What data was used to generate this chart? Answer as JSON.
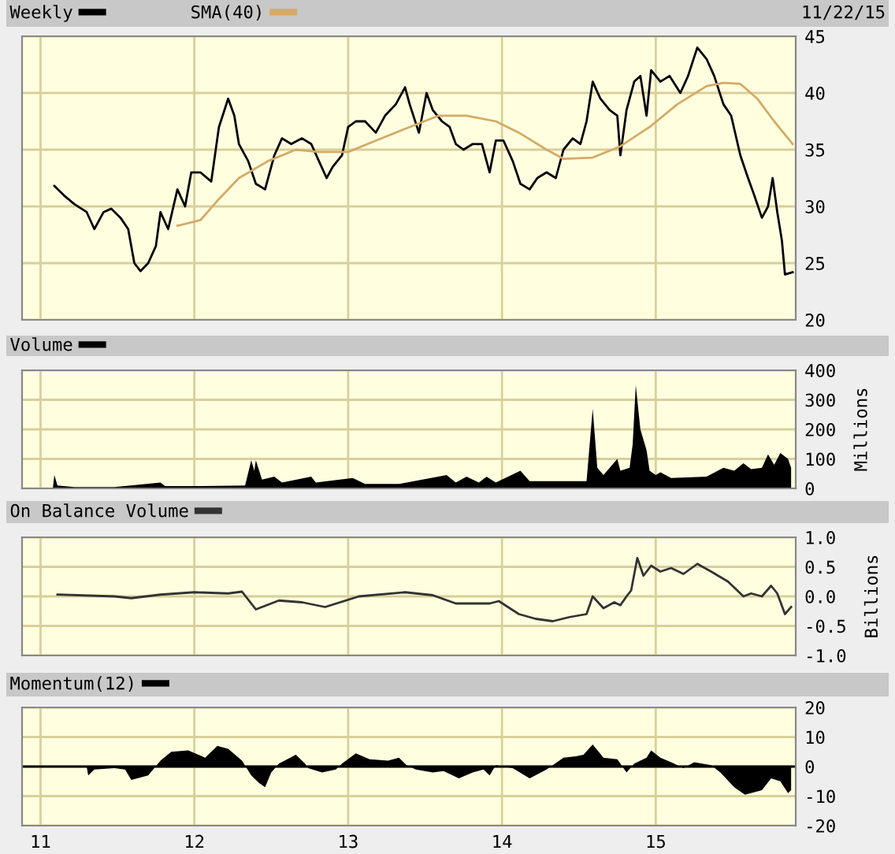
{
  "chart_data": [
    {
      "type": "line",
      "annotations": [
        "11/22/15"
      ],
      "xlim": [
        2010.88,
        2015.91
      ],
      "xticks": [
        {
          "value": 2011,
          "label": null
        },
        {
          "value": 2012,
          "label": null
        },
        {
          "value": 2013,
          "label": null
        },
        {
          "value": 2014,
          "label": null
        },
        {
          "value": 2015,
          "label": null
        }
      ],
      "ylim": [
        20,
        45
      ],
      "yticks": [
        20,
        25,
        30,
        35,
        40,
        45
      ],
      "grid": true,
      "legend": "top left",
      "tick_labels": "y",
      "series": [
        {
          "name": "Weekly",
          "color": "#000000",
          "x": [
            2011.09,
            2011.15,
            2011.22,
            2011.3,
            2011.35,
            2011.41,
            2011.46,
            2011.52,
            2011.57,
            2011.61,
            2011.65,
            2011.7,
            2011.75,
            2011.78,
            2011.83,
            2011.89,
            2011.94,
            2011.98,
            2012.04,
            2012.11,
            2012.16,
            2012.22,
            2012.26,
            2012.29,
            2012.35,
            2012.4,
            2012.46,
            2012.52,
            2012.57,
            2012.63,
            2012.7,
            2012.76,
            2012.81,
            2012.86,
            2012.9,
            2012.96,
            2013.0,
            2013.05,
            2013.11,
            2013.18,
            2013.24,
            2013.31,
            2013.37,
            2013.4,
            2013.46,
            2013.51,
            2013.55,
            2013.61,
            2013.66,
            2013.7,
            2013.75,
            2013.81,
            2013.87,
            2013.92,
            2013.96,
            2014.01,
            2014.07,
            2014.12,
            2014.18,
            2014.23,
            2014.29,
            2014.35,
            2014.4,
            2014.46,
            2014.51,
            2014.55,
            2014.59,
            2014.64,
            2014.7,
            2014.75,
            2014.77,
            2014.81,
            2014.86,
            2014.9,
            2014.94,
            2014.97,
            2015.03,
            2015.09,
            2015.16,
            2015.21,
            2015.27,
            2015.33,
            2015.38,
            2015.44,
            2015.49,
            2015.55,
            2015.6,
            2015.64,
            2015.69,
            2015.73,
            2015.76,
            2015.79,
            2015.82,
            2015.84,
            2015.89
          ],
          "values": [
            31.8,
            31,
            30.2,
            29.5,
            28,
            29.5,
            29.8,
            29,
            28,
            25,
            24.3,
            25,
            26.5,
            29.5,
            28,
            31.5,
            30,
            33,
            33,
            32.2,
            37,
            39.5,
            38,
            35.5,
            34,
            32,
            31.5,
            34.5,
            36,
            35.5,
            36,
            35.5,
            34,
            32.5,
            33.5,
            34.5,
            37,
            37.5,
            37.5,
            36.5,
            38,
            39,
            40.5,
            39,
            36.5,
            40,
            38.5,
            37.5,
            37,
            35.5,
            35,
            35.5,
            35.5,
            33,
            35.8,
            35.8,
            34,
            32,
            31.5,
            32.5,
            33,
            32.5,
            35,
            36,
            35.5,
            37.5,
            41,
            39.5,
            38.5,
            38,
            34.5,
            38.5,
            41,
            41.5,
            38,
            42,
            41,
            41.5,
            40,
            41.5,
            44,
            43,
            41.5,
            39,
            38,
            34.5,
            32.5,
            31,
            29,
            30,
            32.5,
            29.5,
            27,
            24,
            24.2
          ]
        },
        {
          "name": "SMA(40)",
          "color": "#d4aa66",
          "x": [
            2011.89,
            2012.04,
            2012.15,
            2012.29,
            2012.48,
            2012.66,
            2012.81,
            2013.0,
            2013.18,
            2013.4,
            2013.59,
            2013.77,
            2013.96,
            2014.11,
            2014.29,
            2014.4,
            2014.59,
            2014.77,
            2014.96,
            2015.14,
            2015.33,
            2015.44,
            2015.55,
            2015.66,
            2015.77,
            2015.89
          ],
          "values": [
            28.3,
            28.8,
            30.5,
            32.5,
            34,
            35,
            34.8,
            34.8,
            35.8,
            37,
            38,
            38,
            37.5,
            36.5,
            35,
            34.2,
            34.3,
            35.3,
            37,
            39,
            40.6,
            40.9,
            40.8,
            39.5,
            37.5,
            35.5
          ]
        }
      ]
    },
    {
      "type": "area",
      "ylabel": "Millions",
      "xlim": [
        2010.88,
        2015.91
      ],
      "xticks": [
        {
          "value": 2011,
          "label": null
        },
        {
          "value": 2012,
          "label": null
        },
        {
          "value": 2013,
          "label": null
        },
        {
          "value": 2014,
          "label": null
        },
        {
          "value": 2015,
          "label": null
        }
      ],
      "ylim": [
        0,
        400
      ],
      "yticks": [
        0,
        100,
        200,
        300,
        400
      ],
      "grid": true,
      "legend": "top left",
      "tick_labels": "y",
      "series": [
        {
          "name": "Volume",
          "color": "#000000",
          "x": [
            2011.08,
            2011.09,
            2011.11,
            2011.22,
            2011.48,
            2011.78,
            2011.81,
            2012.04,
            2012.33,
            2012.37,
            2012.39,
            2012.4,
            2012.44,
            2012.52,
            2012.57,
            2012.76,
            2012.79,
            2013.03,
            2013.11,
            2013.33,
            2013.64,
            2013.7,
            2013.77,
            2013.85,
            2013.9,
            2013.96,
            2014.12,
            2014.18,
            2014.44,
            2014.55,
            2014.59,
            2014.62,
            2014.66,
            2014.75,
            2014.77,
            2014.83,
            2014.85,
            2014.87,
            2014.9,
            2014.94,
            2014.96,
            2015.0,
            2015.03,
            2015.1,
            2015.33,
            2015.44,
            2015.51,
            2015.57,
            2015.62,
            2015.69,
            2015.73,
            2015.77,
            2015.81,
            2015.86,
            2015.88
          ],
          "values": [
            0,
            45,
            10,
            5,
            5,
            20,
            8,
            8,
            10,
            95,
            60,
            95,
            30,
            40,
            20,
            40,
            20,
            35,
            15,
            15,
            45,
            20,
            40,
            20,
            40,
            20,
            60,
            25,
            25,
            25,
            270,
            70,
            45,
            100,
            60,
            70,
            150,
            350,
            200,
            130,
            60,
            45,
            55,
            35,
            40,
            70,
            60,
            85,
            65,
            70,
            115,
            80,
            120,
            100,
            70
          ]
        }
      ]
    },
    {
      "type": "line",
      "ylabel": "Billions",
      "xlim": [
        2010.88,
        2015.91
      ],
      "xticks": [
        {
          "value": 2011,
          "label": null
        },
        {
          "value": 2012,
          "label": null
        },
        {
          "value": 2013,
          "label": null
        },
        {
          "value": 2014,
          "label": null
        },
        {
          "value": 2015,
          "label": null
        }
      ],
      "ylim": [
        -1,
        1
      ],
      "yticks": [
        {
          "value": -1,
          "label": "-1.0"
        },
        {
          "value": -0.5,
          "label": "-0.5"
        },
        {
          "value": 0,
          "label": "0.0"
        },
        {
          "value": 0.5,
          "label": "0.5"
        },
        {
          "value": 1,
          "label": "1.0"
        }
      ],
      "grid": true,
      "legend": "top left",
      "tick_labels": "y",
      "series": [
        {
          "name": "On Balance Volume",
          "color": "#333333",
          "x": [
            2011.11,
            2011.48,
            2011.59,
            2011.78,
            2012.0,
            2012.22,
            2012.31,
            2012.4,
            2012.55,
            2012.7,
            2012.85,
            2013.07,
            2013.37,
            2013.55,
            2013.7,
            2013.92,
            2013.98,
            2014.11,
            2014.22,
            2014.33,
            2014.44,
            2014.55,
            2014.59,
            2014.66,
            2014.73,
            2014.77,
            2014.81,
            2014.84,
            2014.88,
            2014.92,
            2014.97,
            2015.03,
            2015.1,
            2015.18,
            2015.27,
            2015.36,
            2015.47,
            2015.57,
            2015.62,
            2015.69,
            2015.75,
            2015.79,
            2015.84,
            2015.88
          ],
          "values": [
            0.03,
            0.0,
            -0.03,
            0.03,
            0.07,
            0.05,
            0.08,
            -0.22,
            -0.07,
            -0.1,
            -0.18,
            0.0,
            0.07,
            0.02,
            -0.12,
            -0.12,
            -0.08,
            -0.3,
            -0.38,
            -0.42,
            -0.35,
            -0.3,
            0.0,
            -0.2,
            -0.1,
            -0.15,
            0.0,
            0.1,
            0.65,
            0.35,
            0.52,
            0.42,
            0.48,
            0.38,
            0.55,
            0.42,
            0.25,
            0.0,
            0.05,
            0.0,
            0.18,
            0.05,
            -0.3,
            -0.18
          ]
        }
      ]
    },
    {
      "type": "area",
      "xlim": [
        2010.88,
        2015.91
      ],
      "xticks": [
        {
          "value": 2011,
          "label": "11"
        },
        {
          "value": 2012,
          "label": "12"
        },
        {
          "value": 2013,
          "label": "13"
        },
        {
          "value": 2014,
          "label": "14"
        },
        {
          "value": 2015,
          "label": "15"
        }
      ],
      "ylim": [
        -20,
        20
      ],
      "yticks": [
        {
          "value": -20,
          "label": "-20"
        },
        {
          "value": -10,
          "label": "-10"
        },
        0,
        10,
        20
      ],
      "grid": true,
      "legend": "top left",
      "ref_lines": [
        {
          "axis": "y",
          "value": 0,
          "color": "#000000"
        }
      ],
      "series": [
        {
          "name": "Momentum(12)",
          "color": "#000000",
          "x": [
            2011.3,
            2011.31,
            2011.35,
            2011.48,
            2011.55,
            2011.59,
            2011.7,
            2011.78,
            2011.85,
            2011.96,
            2012.07,
            2012.15,
            2012.22,
            2012.31,
            2012.37,
            2012.42,
            2012.46,
            2012.5,
            2012.55,
            2012.66,
            2012.72,
            2012.74,
            2012.83,
            2012.92,
            2012.96,
            2013.05,
            2013.14,
            2013.26,
            2013.33,
            2013.38,
            2013.44,
            2013.55,
            2013.62,
            2013.72,
            2013.81,
            2013.88,
            2013.92,
            2013.96,
            2014.07,
            2014.18,
            2014.29,
            2014.4,
            2014.48,
            2014.53,
            2014.59,
            2014.66,
            2014.75,
            2014.81,
            2014.86,
            2014.94,
            2014.97,
            2015.03,
            2015.1,
            2015.18,
            2015.25,
            2015.36,
            2015.42,
            2015.51,
            2015.58,
            2015.69,
            2015.75,
            2015.81,
            2015.86,
            2015.88
          ],
          "values": [
            0,
            -3,
            -1,
            -0.5,
            -1,
            -4.5,
            -3,
            2,
            5,
            5.5,
            3,
            7,
            6,
            2,
            -3,
            -5.5,
            -7,
            -2,
            1,
            4,
            1,
            -0.5,
            -2,
            -1,
            1,
            4.5,
            2.5,
            2,
            3,
            0.5,
            -1,
            -2,
            -1.5,
            -4,
            -2,
            -1,
            -3,
            0.5,
            -0.5,
            -4,
            -1,
            3,
            3.5,
            4,
            7.5,
            3,
            2.5,
            -2,
            1,
            3,
            5.5,
            3,
            1.5,
            -0.5,
            1.5,
            0.5,
            -2,
            -7,
            -9.5,
            -8,
            -4,
            -5,
            -9,
            -8
          ]
        }
      ]
    }
  ]
}
